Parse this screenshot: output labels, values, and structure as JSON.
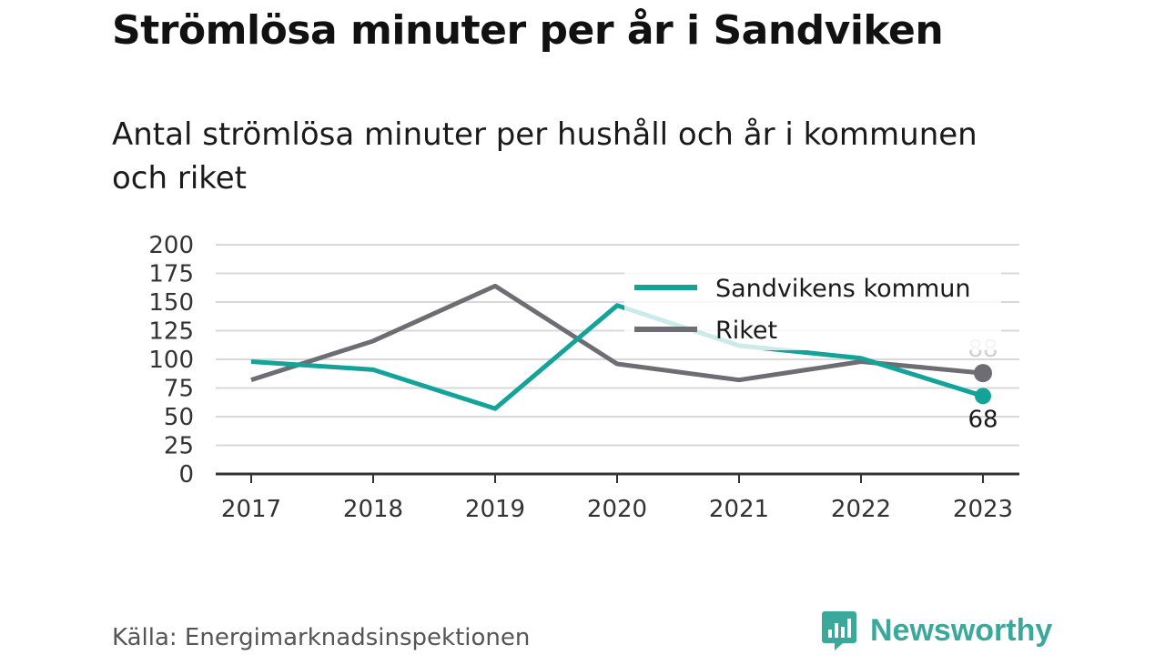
{
  "header": {
    "title": "Strömlösa minuter per år i Sandviken",
    "subtitle": "Antal strömlösa minuter per hushåll och år i kommunen och riket"
  },
  "footer": {
    "source": "Källa: Energimarknadsinspektionen",
    "brand": "Newsworthy",
    "brand_icon": "bar-chart-speech-bubble-icon"
  },
  "colors": {
    "sandviken": "#13a398",
    "riket": "#6e6d74",
    "grid": "#d9d9d9",
    "axis": "#333333",
    "brand": "#3aa89a"
  },
  "chart_data": {
    "type": "line",
    "x": [
      "2017",
      "2018",
      "2019",
      "2020",
      "2021",
      "2022",
      "2023"
    ],
    "ylim": [
      0,
      200
    ],
    "yticks": [
      0,
      25,
      50,
      75,
      100,
      125,
      150,
      175,
      200
    ],
    "grid": true,
    "legend_position": "top-right",
    "series": [
      {
        "name": "Sandvikens kommun",
        "color": "#13a398",
        "values": [
          98,
          91,
          57,
          147,
          112,
          101,
          68
        ],
        "end_label": "68"
      },
      {
        "name": "Riket",
        "color": "#6e6d74",
        "values": [
          82,
          116,
          164,
          96,
          82,
          98,
          88
        ],
        "end_label": "88"
      }
    ]
  }
}
